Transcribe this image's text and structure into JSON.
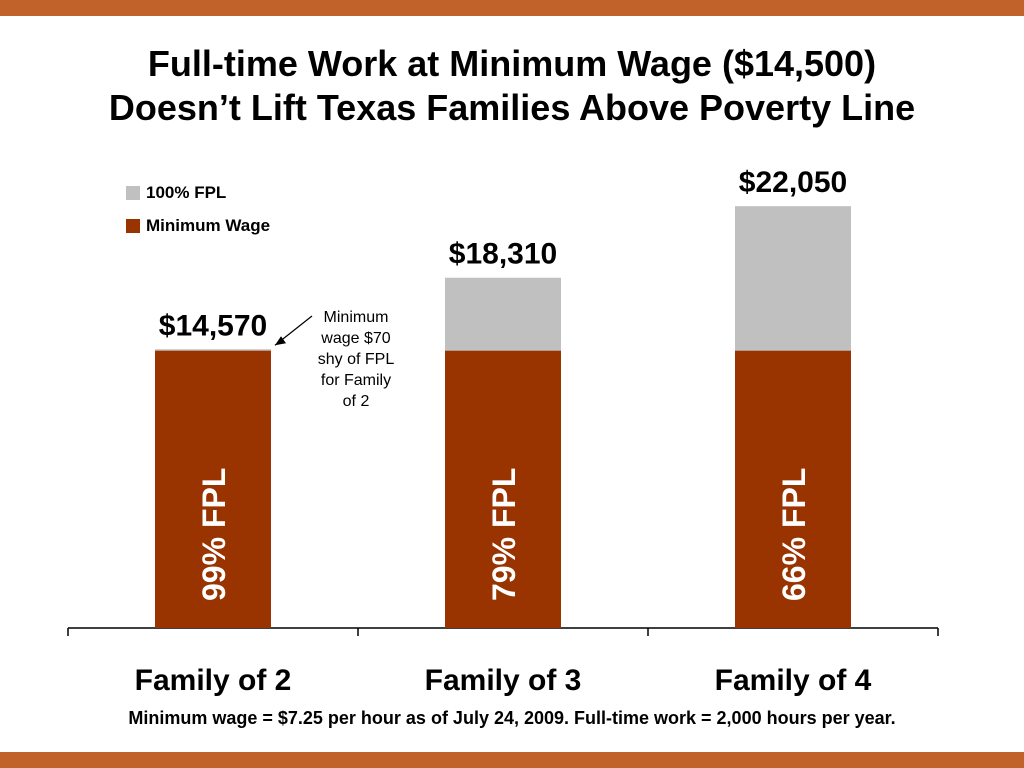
{
  "title": {
    "line1": "Full-time Work at Minimum Wage ($14,500)",
    "line2": "Doesn’t Lift Texas Families Above Poverty Line"
  },
  "colors": {
    "stripe": "#c2622b",
    "minimum_wage": "#993300",
    "fpl": "#c0c0c0"
  },
  "annotation": {
    "lines": [
      "Minimum",
      "wage $70",
      "shy of FPL",
      "for Family",
      "of 2"
    ]
  },
  "footnote": "Minimum wage = $7.25 per hour as of July 24, 2009.  Full-time work = 2,000 hours per year.",
  "chart_data": {
    "type": "bar",
    "stacked": true,
    "categories": [
      "Family of 2",
      "Family of 3",
      "Family of 4"
    ],
    "series": [
      {
        "name": "Minimum Wage",
        "values": [
          14500,
          14500,
          14500
        ],
        "color": "#993300"
      },
      {
        "name": "100% FPL",
        "values": [
          70,
          3810,
          7550
        ],
        "color": "#c0c0c0"
      }
    ],
    "totals": [
      14570,
      18310,
      22050
    ],
    "total_labels": [
      "$14,570",
      "$18,310",
      "$22,050"
    ],
    "bar_labels": [
      "99% FPL",
      "79% FPL",
      "66% FPL"
    ],
    "legend": [
      "100% FPL",
      "Minimum Wage"
    ],
    "legend_position": "top-left",
    "ylim": [
      0,
      23000
    ],
    "grid": false,
    "xlabel": "",
    "ylabel": ""
  }
}
